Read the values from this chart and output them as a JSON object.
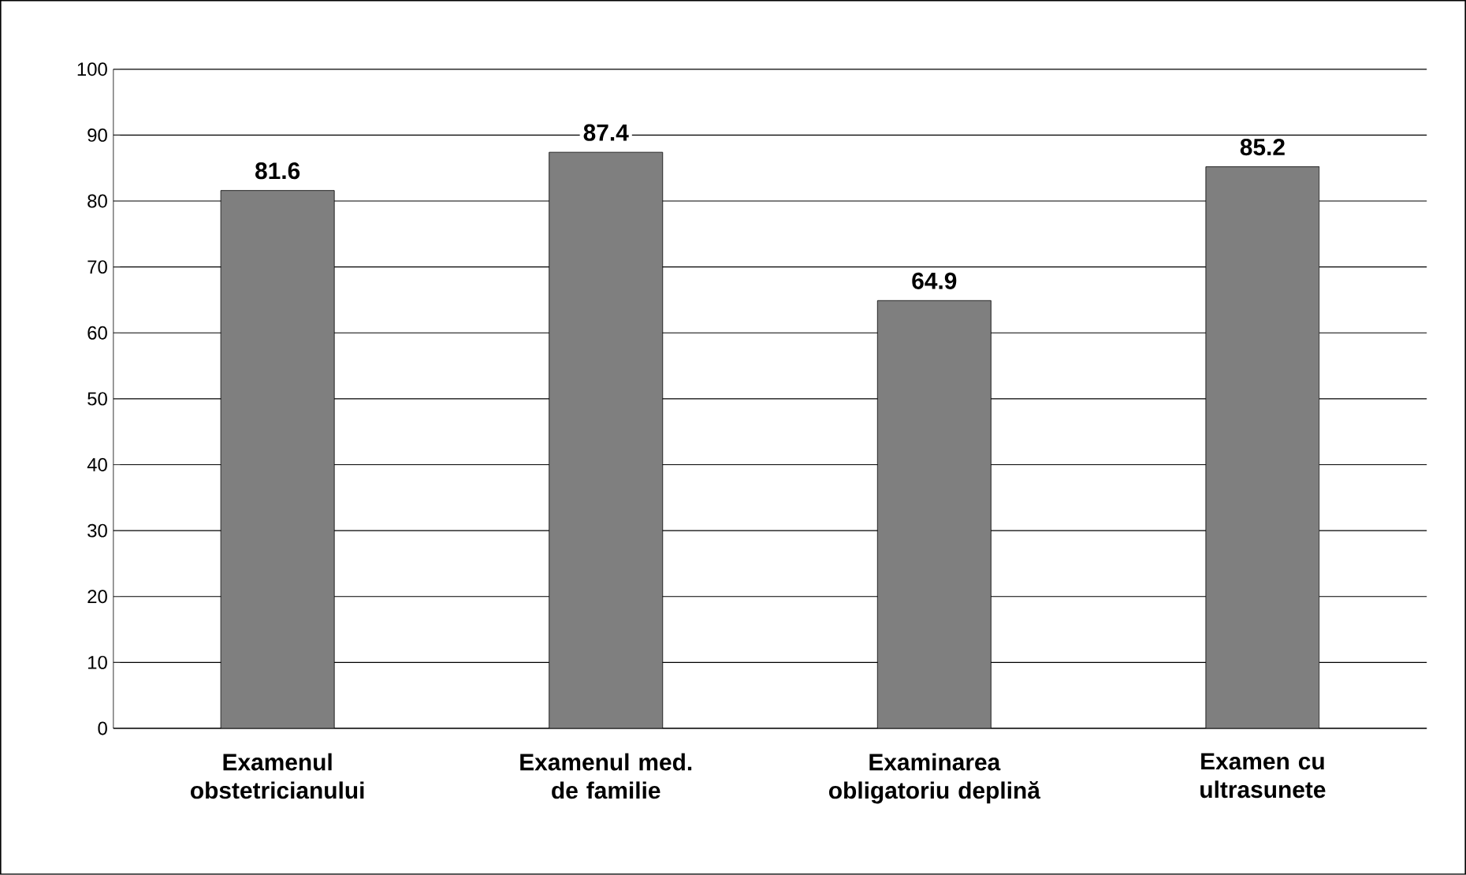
{
  "chart_data": {
    "type": "bar",
    "categories": [
      "Examenul obstetricianului",
      "Examenul med. de familie",
      "Examinarea obligatoriu deplină",
      "Examen cu ultrasunete"
    ],
    "values": [
      81.6,
      87.4,
      64.9,
      85.2
    ],
    "color": "#7f7f7f",
    "ylim": [
      0,
      100
    ],
    "yticks": [
      0,
      10,
      20,
      30,
      40,
      50,
      60,
      70,
      80,
      90,
      100
    ],
    "grid": "y",
    "data_labels": true
  }
}
